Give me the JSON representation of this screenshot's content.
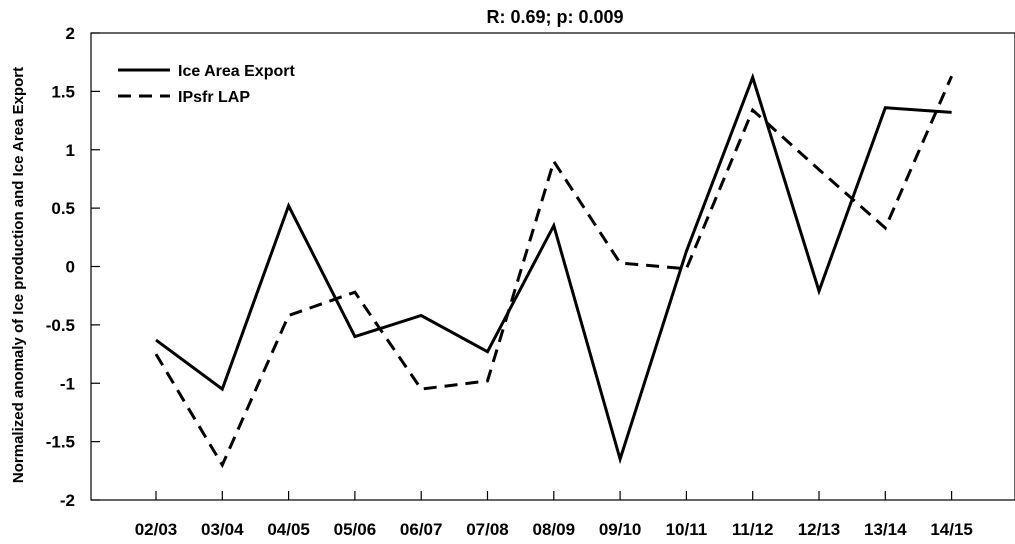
{
  "chart_data": {
    "type": "line",
    "title": "R: 0.69; p: 0.009",
    "xlabel": "",
    "ylabel": "Normalized anomaly of Ice production and Ice Area Export",
    "categories": [
      "02/03",
      "03/04",
      "04/05",
      "05/06",
      "06/07",
      "07/08",
      "08/09",
      "09/10",
      "10/11",
      "11/12",
      "12/13",
      "13/14",
      "14/15"
    ],
    "ylim": [
      -2,
      2
    ],
    "yticks": [
      "-2",
      "-1.5",
      "-1",
      "-0.5",
      "0",
      "0.5",
      "1",
      "1.5",
      "2"
    ],
    "grid": false,
    "legend_position": "top-left",
    "series": [
      {
        "name": "Ice Area Export",
        "style": "solid",
        "color": "#000000",
        "values": [
          -0.63,
          -1.05,
          0.52,
          -0.6,
          -0.42,
          -0.73,
          0.35,
          -1.65,
          0.13,
          1.62,
          -0.21,
          1.36,
          1.32
        ]
      },
      {
        "name": "IPsfr LAP",
        "style": "dashed",
        "color": "#000000",
        "values": [
          -0.75,
          -1.7,
          -0.42,
          -0.22,
          -1.05,
          -0.98,
          0.9,
          0.03,
          -0.02,
          1.34,
          0.83,
          0.33,
          1.63
        ]
      }
    ]
  }
}
